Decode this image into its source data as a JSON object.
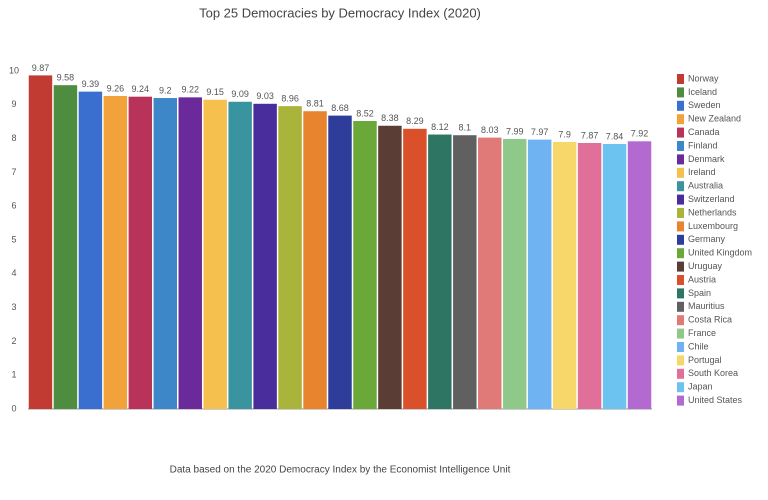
{
  "chart_data": {
    "type": "bar",
    "title": "Top 25 Democracies by Democracy Index (2020)",
    "caption": "Data based on the 2020 Democracy Index by the Economist Intelligence Unit",
    "categories": [
      "Norway",
      "Iceland",
      "Sweden",
      "New Zealand",
      "Canada",
      "Finland",
      "Denmark",
      "Ireland",
      "Australia",
      "Switzerland",
      "Netherlands",
      "Luxembourg",
      "Germany",
      "United Kingdom",
      "Uruguay",
      "Austria",
      "Spain",
      "Mauritius",
      "Costa Rica",
      "France",
      "Chile",
      "Portugal",
      "South Korea",
      "Japan",
      "United States"
    ],
    "values": [
      9.87,
      9.58,
      9.39,
      9.26,
      9.24,
      9.2,
      9.22,
      9.15,
      9.09,
      9.03,
      8.96,
      8.81,
      8.68,
      8.52,
      8.38,
      8.29,
      8.12,
      8.1,
      8.03,
      7.99,
      7.97,
      7.9,
      7.87,
      7.84,
      7.92
    ],
    "colors": [
      "#c23b32",
      "#4e8c3f",
      "#3a6fd0",
      "#f2a23a",
      "#b8325a",
      "#3d87c9",
      "#6a2a9a",
      "#f5c04e",
      "#3a94a0",
      "#4a2d9c",
      "#a8b43a",
      "#e8832e",
      "#2e3d9a",
      "#6aa83a",
      "#5a3e36",
      "#d9502b",
      "#2f7564",
      "#606060",
      "#e07a78",
      "#8fc98a",
      "#6fb3f2",
      "#f7d66a",
      "#e0709a",
      "#6dc3f0",
      "#b36ad0"
    ],
    "ylim": [
      0,
      10
    ],
    "yticks": [
      0,
      1,
      2,
      3,
      4,
      5,
      6,
      7,
      8,
      9,
      10
    ],
    "grid": false,
    "legend": "right"
  }
}
